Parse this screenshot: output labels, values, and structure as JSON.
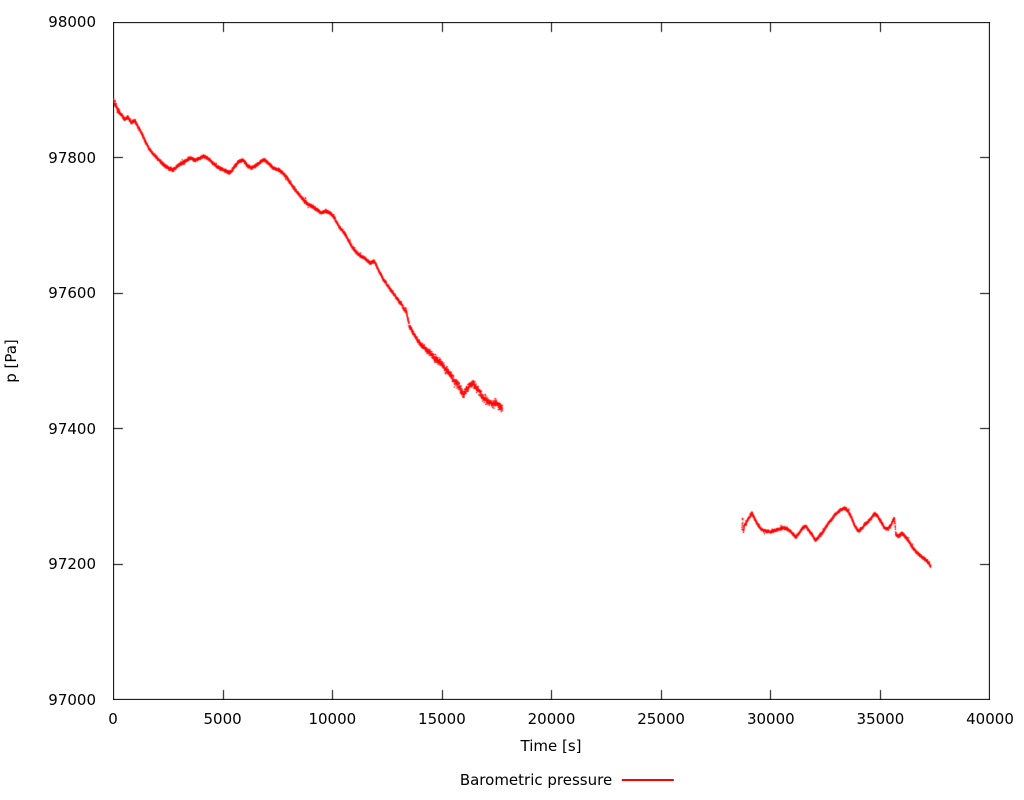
{
  "chart_data": {
    "type": "scatter",
    "title": "",
    "xlabel": "Time [s]",
    "ylabel": "p [Pa]",
    "xlim": [
      0,
      40000
    ],
    "ylim": [
      97000,
      98000
    ],
    "grid": false,
    "legend_position": "below-center",
    "xticks": [
      0,
      5000,
      10000,
      15000,
      20000,
      25000,
      30000,
      35000,
      40000
    ],
    "yticks": [
      97000,
      97200,
      97400,
      97600,
      97800,
      98000
    ],
    "xtick_labels": [
      "0",
      "5000",
      "10000",
      "15000",
      "20000",
      "25000",
      "30000",
      "35000",
      "40000"
    ],
    "ytick_labels": [
      "98000",
      "97800",
      "97600",
      "97400",
      "97200",
      "97000"
    ],
    "axis_color": "#000000",
    "series": [
      {
        "name": "Barometric pressure",
        "color": "#ff0000",
        "style": "dots",
        "segments": [
          {
            "noise": [
              [
                0,
                250,
                6
              ],
              [
                250,
                13000,
                3.2
              ],
              [
                13000,
                14400,
                4.5
              ],
              [
                14400,
                17800,
                8
              ]
            ],
            "points": [
              [
                0,
                97886
              ],
              [
                100,
                97878
              ],
              [
                200,
                97870
              ],
              [
                350,
                97864
              ],
              [
                500,
                97857
              ],
              [
                650,
                97860
              ],
              [
                800,
                97852
              ],
              [
                950,
                97856
              ],
              [
                1100,
                97847
              ],
              [
                1250,
                97838
              ],
              [
                1400,
                97828
              ],
              [
                1550,
                97818
              ],
              [
                1700,
                97810
              ],
              [
                1900,
                97803
              ],
              [
                2100,
                97796
              ],
              [
                2300,
                97790
              ],
              [
                2500,
                97785
              ],
              [
                2700,
                97782
              ],
              [
                2900,
                97788
              ],
              [
                3100,
                97792
              ],
              [
                3300,
                97796
              ],
              [
                3500,
                97800
              ],
              [
                3700,
                97797
              ],
              [
                3900,
                97799
              ],
              [
                4100,
                97803
              ],
              [
                4300,
                97800
              ],
              [
                4500,
                97793
              ],
              [
                4700,
                97788
              ],
              [
                4900,
                97784
              ],
              [
                5100,
                97781
              ],
              [
                5300,
                97778
              ],
              [
                5500,
                97786
              ],
              [
                5700,
                97795
              ],
              [
                5900,
                97797
              ],
              [
                6100,
                97789
              ],
              [
                6300,
                97785
              ],
              [
                6500,
                97789
              ],
              [
                6700,
                97794
              ],
              [
                6900,
                97798
              ],
              [
                7100,
                97791
              ],
              [
                7300,
                97785
              ],
              [
                7500,
                97783
              ],
              [
                7700,
                97779
              ],
              [
                7900,
                97771
              ],
              [
                8100,
                97762
              ],
              [
                8300,
                97753
              ],
              [
                8500,
                97745
              ],
              [
                8700,
                97737
              ],
              [
                8900,
                97731
              ],
              [
                9100,
                97728
              ],
              [
                9300,
                97723
              ],
              [
                9500,
                97719
              ],
              [
                9700,
                97722
              ],
              [
                9900,
                97718
              ],
              [
                10100,
                97711
              ],
              [
                10300,
                97698
              ],
              [
                10500,
                97691
              ],
              [
                10700,
                97680
              ],
              [
                10900,
                97668
              ],
              [
                11100,
                97660
              ],
              [
                11300,
                97655
              ],
              [
                11500,
                97651
              ],
              [
                11700,
                97645
              ],
              [
                11900,
                97648
              ],
              [
                12100,
                97634
              ],
              [
                12300,
                97622
              ],
              [
                12500,
                97612
              ],
              [
                12700,
                97603
              ],
              [
                12900,
                97594
              ],
              [
                13100,
                97586
              ],
              [
                13250,
                97578
              ],
              [
                13380,
                97572
              ],
              [
                13500,
                97552
              ],
              [
                13650,
                97543
              ],
              [
                13800,
                97535
              ],
              [
                13950,
                97528
              ],
              [
                14150,
                97520
              ],
              [
                14350,
                97514
              ],
              [
                14550,
                97508
              ],
              [
                14750,
                97503
              ],
              [
                14950,
                97497
              ],
              [
                15150,
                97488
              ],
              [
                15350,
                97481
              ],
              [
                15550,
                97472
              ],
              [
                15750,
                97464
              ],
              [
                15950,
                97450
              ],
              [
                16100,
                97456
              ],
              [
                16250,
                97464
              ],
              [
                16400,
                97468
              ],
              [
                16550,
                97462
              ],
              [
                16700,
                97455
              ],
              [
                16850,
                97447
              ],
              [
                17000,
                97443
              ],
              [
                17150,
                97440
              ],
              [
                17300,
                97436
              ],
              [
                17450,
                97438
              ],
              [
                17600,
                97434
              ],
              [
                17750,
                97430
              ]
            ]
          },
          {
            "noise": [
              [
                28650,
                28900,
                6
              ],
              [
                28900,
                37350,
                3
              ]
            ],
            "points": [
              [
                28690,
                97252
              ],
              [
                28720,
                97268
              ],
              [
                28750,
                97247
              ],
              [
                28800,
                97258
              ],
              [
                28900,
                97262
              ],
              [
                29000,
                97268
              ],
              [
                29150,
                97275
              ],
              [
                29300,
                97265
              ],
              [
                29450,
                97257
              ],
              [
                29600,
                97251
              ],
              [
                29800,
                97249
              ],
              [
                30000,
                97248
              ],
              [
                30200,
                97250
              ],
              [
                30400,
                97252
              ],
              [
                30600,
                97254
              ],
              [
                30800,
                97252
              ],
              [
                31000,
                97245
              ],
              [
                31150,
                97240
              ],
              [
                31300,
                97246
              ],
              [
                31450,
                97253
              ],
              [
                31600,
                97257
              ],
              [
                31750,
                97250
              ],
              [
                31900,
                97243
              ],
              [
                32050,
                97235
              ],
              [
                32200,
                97241
              ],
              [
                32350,
                97246
              ],
              [
                32500,
                97254
              ],
              [
                32650,
                97261
              ],
              [
                32800,
                97267
              ],
              [
                32950,
                97273
              ],
              [
                33100,
                97278
              ],
              [
                33250,
                97281
              ],
              [
                33400,
                97283
              ],
              [
                33550,
                97278
              ],
              [
                33700,
                97268
              ],
              [
                33850,
                97256
              ],
              [
                34000,
                97249
              ],
              [
                34150,
                97252
              ],
              [
                34300,
                97259
              ],
              [
                34450,
                97263
              ],
              [
                34600,
                97268
              ],
              [
                34750,
                97275
              ],
              [
                34900,
                97270
              ],
              [
                35050,
                97262
              ],
              [
                35200,
                97254
              ],
              [
                35350,
                97252
              ],
              [
                35500,
                97258
              ],
              [
                35650,
                97269
              ],
              [
                35720,
                97244
              ],
              [
                35850,
                97241
              ],
              [
                36000,
                97246
              ],
              [
                36150,
                97241
              ],
              [
                36300,
                97234
              ],
              [
                36450,
                97226
              ],
              [
                36600,
                97220
              ],
              [
                36750,
                97215
              ],
              [
                36900,
                97211
              ],
              [
                37050,
                97207
              ],
              [
                37200,
                97203
              ],
              [
                37310,
                97197
              ]
            ]
          }
        ]
      }
    ]
  }
}
